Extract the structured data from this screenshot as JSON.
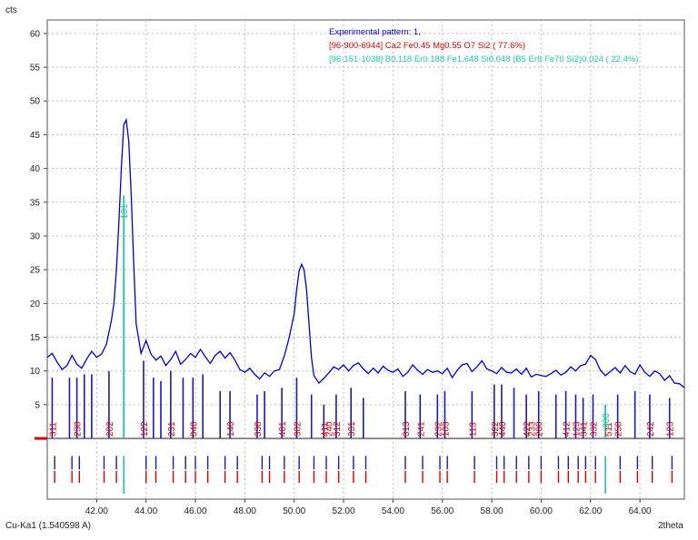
{
  "chart_data": {
    "type": "line",
    "ylabel": "cts",
    "xlabel": "2theta",
    "radiation": "Cu-Ka1 (1.540598 A)",
    "xlim": [
      40.0,
      65.8
    ],
    "ylim": [
      -9,
      62
    ],
    "xticks": [
      "42.00",
      "44.00",
      "46.00",
      "48.00",
      "50.00",
      "52.00",
      "54.00",
      "56.00",
      "58.00",
      "60.00",
      "62.00",
      "64.00"
    ],
    "yticks": [
      "5",
      "10",
      "15",
      "20",
      "25",
      "30",
      "35",
      "40",
      "45",
      "50",
      "55",
      "60"
    ],
    "grid": true,
    "legend_position": "top-right",
    "colors": {
      "experimental": "#0000dd",
      "phase1": "#e00000",
      "phase2": "#20c8a0",
      "phase1_stick": "#1a1ab4"
    },
    "series": [
      {
        "name": "Experimental pattern: 1,",
        "x": [
          40.0,
          40.2,
          40.4,
          40.6,
          40.8,
          41.0,
          41.2,
          41.4,
          41.6,
          41.8,
          42.0,
          42.2,
          42.4,
          42.6,
          42.7,
          42.8,
          42.9,
          43.0,
          43.1,
          43.2,
          43.3,
          43.4,
          43.5,
          43.6,
          43.8,
          44.0,
          44.2,
          44.4,
          44.6,
          44.8,
          45.0,
          45.2,
          45.4,
          45.6,
          45.8,
          46.0,
          46.2,
          46.4,
          46.6,
          46.8,
          47.0,
          47.2,
          47.4,
          47.6,
          47.8,
          48.0,
          48.2,
          48.4,
          48.6,
          48.8,
          49.0,
          49.2,
          49.4,
          49.6,
          49.8,
          50.0,
          50.1,
          50.2,
          50.3,
          50.4,
          50.5,
          50.6,
          50.7,
          50.8,
          51.0,
          51.2,
          51.4,
          51.6,
          51.8,
          52.0,
          52.2,
          52.4,
          52.6,
          52.8,
          53.0,
          53.2,
          53.4,
          53.6,
          53.8,
          54.0,
          54.2,
          54.4,
          54.6,
          54.8,
          55.0,
          55.2,
          55.4,
          55.6,
          55.8,
          56.0,
          56.2,
          56.4,
          56.6,
          56.8,
          57.0,
          57.2,
          57.4,
          57.6,
          57.8,
          58.0,
          58.2,
          58.4,
          58.6,
          58.8,
          59.0,
          59.2,
          59.4,
          59.6,
          59.8,
          60.0,
          60.2,
          60.4,
          60.6,
          60.8,
          61.0,
          61.2,
          61.4,
          61.6,
          61.8,
          62.0,
          62.2,
          62.4,
          62.6,
          62.8,
          63.0,
          63.2,
          63.4,
          63.6,
          63.8,
          64.0,
          64.2,
          64.4,
          64.6,
          64.8,
          65.0,
          65.2,
          65.4,
          65.6,
          65.8
        ],
        "values": [
          12,
          12.6,
          11.3,
          10.2,
          10.8,
          12.3,
          11,
          10.4,
          11.8,
          12.9,
          12,
          12.5,
          14,
          17.5,
          20,
          25,
          32,
          40,
          46.5,
          47.2,
          44,
          36,
          26,
          17,
          12.6,
          14.5,
          12.5,
          11.6,
          12.2,
          10.8,
          11.7,
          12.9,
          11,
          11.7,
          12.6,
          12,
          13.2,
          12.1,
          11.1,
          12.3,
          12.9,
          11.9,
          12.7,
          11.6,
          10.2,
          9.8,
          10.4,
          9.5,
          8.8,
          9.7,
          9.2,
          10,
          10.2,
          12.2,
          15,
          18.5,
          22,
          24.8,
          25.8,
          25,
          22,
          17,
          12,
          9.3,
          8.2,
          8.9,
          9.7,
          10.6,
          10.2,
          10.9,
          10,
          10.8,
          11.2,
          10.3,
          9.6,
          10.4,
          9.7,
          10.7,
          10.1,
          9.8,
          10.3,
          9.2,
          9.8,
          10.9,
          10.1,
          9.5,
          10.2,
          9.8,
          10,
          9.6,
          10.4,
          9,
          10.1,
          10.9,
          11.1,
          9.9,
          10.6,
          11.5,
          10.3,
          10,
          9.6,
          10.5,
          9.8,
          9.7,
          10.3,
          9.5,
          10.4,
          9.1,
          9.5,
          9.3,
          9.2,
          9.6,
          10.1,
          9.4,
          9.8,
          10.6,
          10,
          10.8,
          11,
          12.3,
          11.7,
          10.1,
          9.3,
          9.9,
          10.5,
          9.7,
          10.8,
          9.9,
          9.5,
          10.9,
          9.8,
          9.2,
          10,
          9.6,
          8.6,
          9.3,
          8.2,
          8.1,
          7.5
        ]
      }
    ],
    "legend": [
      {
        "text": "Experimental pattern: 1,",
        "color": "#0000dd"
      },
      {
        "text": "[96-900-6944] Ca2 Fe0.45 Mg0.55 O7 Si2  ( 77.6%)",
        "color": "#e00000"
      },
      {
        "text": "[96-151-1038] B0.118 Er0.188 Fe1.648 Si0.048 (B5 Er8 Fe70 Si2)0.024 ( 22.4%)",
        "color": "#20c8a0"
      }
    ],
    "phase1_peaks": [
      {
        "x": 40.2,
        "h": 9,
        "hkl": "311"
      },
      {
        "x": 40.9,
        "h": 9,
        "hkl": ""
      },
      {
        "x": 41.2,
        "h": 9,
        "hkl": "230"
      },
      {
        "x": 41.5,
        "h": 9.5,
        "hkl": ""
      },
      {
        "x": 41.8,
        "h": 9.5,
        "hkl": ""
      },
      {
        "x": 42.5,
        "h": 10,
        "hkl": "202"
      },
      {
        "x": 43.9,
        "h": 11.5,
        "hkl": "122"
      },
      {
        "x": 44.3,
        "h": 9,
        "hkl": ""
      },
      {
        "x": 44.6,
        "h": 8.5,
        "hkl": ""
      },
      {
        "x": 45.0,
        "h": 10,
        "hkl": "231"
      },
      {
        "x": 45.5,
        "h": 9,
        "hkl": ""
      },
      {
        "x": 45.9,
        "h": 9,
        "hkl": "040"
      },
      {
        "x": 46.3,
        "h": 9.5,
        "hkl": ""
      },
      {
        "x": 47.0,
        "h": 7,
        "hkl": ""
      },
      {
        "x": 47.4,
        "h": 7,
        "hkl": "140"
      },
      {
        "x": 48.5,
        "h": 6.5,
        "hkl": "330"
      },
      {
        "x": 48.8,
        "h": 7,
        "hkl": ""
      },
      {
        "x": 49.5,
        "h": 7.5,
        "hkl": "401"
      },
      {
        "x": 50.1,
        "h": 9,
        "hkl": "302"
      },
      {
        "x": 50.7,
        "h": 6.5,
        "hkl": ""
      },
      {
        "x": 51.2,
        "h": 5,
        "hkl": "411"
      },
      {
        "x": 51.7,
        "h": 6.5,
        "hkl": "312"
      },
      {
        "x": 52.3,
        "h": 7.5,
        "hkl": "331"
      },
      {
        "x": 52.8,
        "h": 6,
        "hkl": ""
      },
      {
        "x": 54.5,
        "h": 7,
        "hkl": "013"
      },
      {
        "x": 55.1,
        "h": 6.5,
        "hkl": "241"
      },
      {
        "x": 55.8,
        "h": 6.5,
        "hkl": "232"
      },
      {
        "x": 56.1,
        "h": 7,
        "hkl": "103"
      },
      {
        "x": 57.2,
        "h": 7,
        "hkl": "113"
      },
      {
        "x": 58.1,
        "h": 8,
        "hkl": "322"
      },
      {
        "x": 58.4,
        "h": 8,
        "hkl": "440"
      },
      {
        "x": 58.9,
        "h": 7.5,
        "hkl": ""
      },
      {
        "x": 59.4,
        "h": 6.5,
        "hkl": "422"
      },
      {
        "x": 59.9,
        "h": 7,
        "hkl": "200"
      },
      {
        "x": 60.6,
        "h": 6.5,
        "hkl": ""
      },
      {
        "x": 61.0,
        "h": 7,
        "hkl": "412"
      },
      {
        "x": 61.4,
        "h": 6.5,
        "hkl": "123"
      },
      {
        "x": 61.7,
        "h": 6,
        "hkl": "341"
      },
      {
        "x": 62.1,
        "h": 6.5,
        "hkl": "332"
      },
      {
        "x": 63.1,
        "h": 6.5,
        "hkl": "250"
      },
      {
        "x": 63.8,
        "h": 7,
        "hkl": ""
      },
      {
        "x": 64.4,
        "h": 6.5,
        "hkl": "242"
      },
      {
        "x": 65.2,
        "h": 6,
        "hkl": "123"
      }
    ],
    "phase1_labels_extra": [
      {
        "x": 51.4,
        "hkl": "240"
      },
      {
        "x": 59.6,
        "hkl": "233"
      },
      {
        "x": 62.7,
        "hkl": "511"
      }
    ],
    "phase2_peaks": [
      {
        "x": 43.1,
        "h": 36,
        "hkl": "101"
      },
      {
        "x": 62.6,
        "h": 5,
        "hkl": "200"
      }
    ],
    "phase1_ticks_x": [
      40.3,
      41.0,
      41.3,
      42.3,
      42.8,
      44.0,
      44.4,
      45.1,
      45.6,
      46.0,
      46.5,
      47.2,
      47.7,
      48.7,
      49.0,
      49.6,
      50.2,
      50.8,
      51.3,
      51.8,
      52.4,
      52.9,
      54.5,
      55.2,
      55.9,
      56.2,
      57.3,
      58.2,
      58.5,
      59.0,
      59.5,
      60.0,
      60.7,
      61.1,
      61.5,
      61.8,
      62.2,
      63.2,
      63.9,
      64.5,
      65.3
    ],
    "phase2_ticks_x": [
      43.1,
      62.6
    ]
  }
}
